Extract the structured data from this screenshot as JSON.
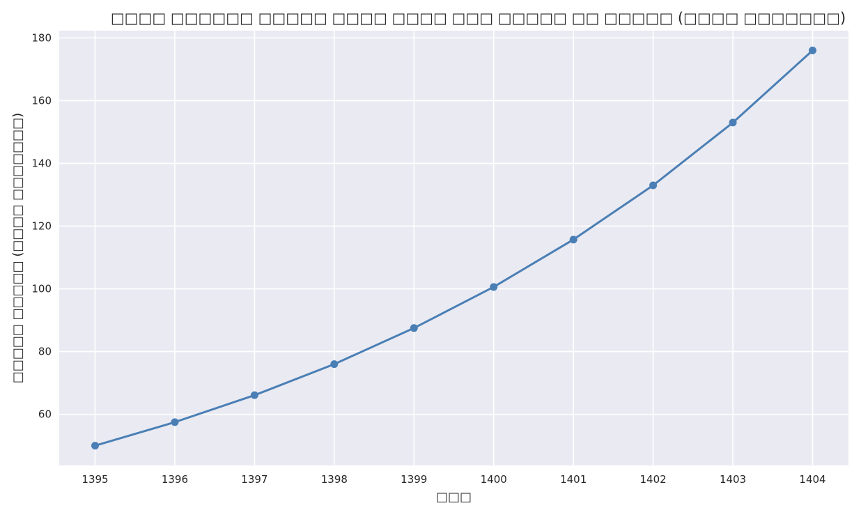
{
  "chart_data": {
    "type": "line",
    "title": "□□□□ □□□□□□ □□□□□ □□□□ □□□□ □□□ □□□□□ □□ □□□□□ (□□□□ □□□□□□□)",
    "xlabel": "□□□",
    "ylabel": "□□□□□ □□□□□ (□□□□ □□□□□□□)",
    "x": [
      1395,
      1396,
      1397,
      1398,
      1399,
      1400,
      1401,
      1402,
      1403,
      1404
    ],
    "series": [
      {
        "values": [
          50.0,
          57.5,
          66.1,
          76.0,
          87.5,
          100.6,
          115.7,
          133.0,
          153.0,
          176.0
        ]
      }
    ],
    "xlim": [
      1394.55,
      1404.45
    ],
    "ylim": [
      43.7,
      182.3
    ],
    "yticks": [
      60,
      80,
      100,
      120,
      140,
      160,
      180
    ],
    "grid": true,
    "legend": "none",
    "colors": {
      "line": "#4a7fb5",
      "plot_background": "#eaeaf2",
      "grid": "#ffffff",
      "text": "#262626"
    }
  }
}
